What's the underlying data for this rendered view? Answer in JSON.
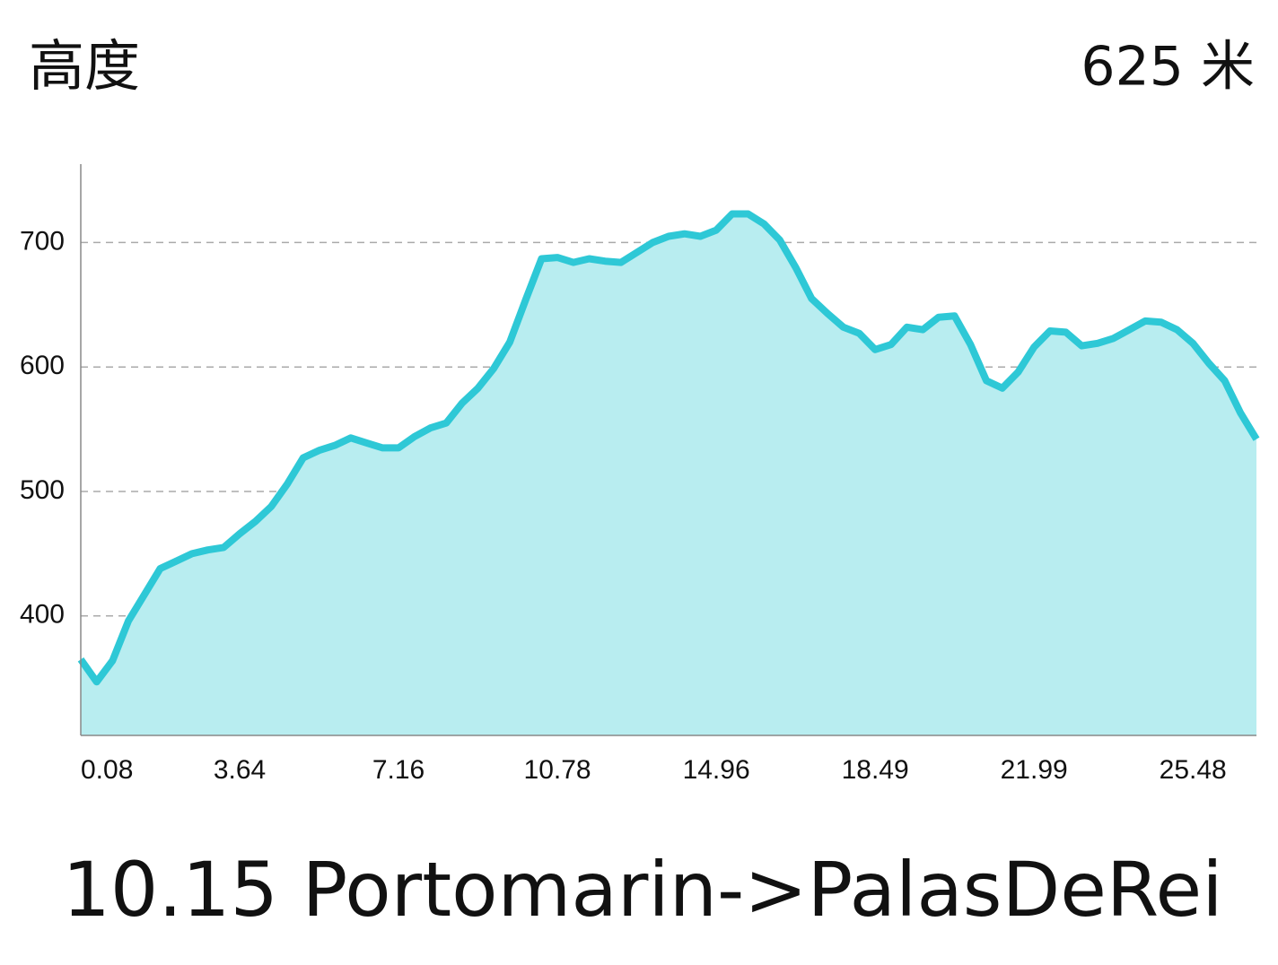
{
  "header": {
    "title": "高度",
    "value": "625 米"
  },
  "chart_data": {
    "type": "area",
    "categories": [
      "0.08",
      null,
      null,
      null,
      null,
      null,
      null,
      null,
      null,
      null,
      "3.64",
      null,
      null,
      null,
      null,
      null,
      null,
      null,
      null,
      null,
      "7.16",
      null,
      null,
      null,
      null,
      null,
      null,
      null,
      null,
      null,
      "10.78",
      null,
      null,
      null,
      null,
      null,
      null,
      null,
      null,
      null,
      "14.96",
      null,
      null,
      null,
      null,
      null,
      null,
      null,
      null,
      null,
      "18.49",
      null,
      null,
      null,
      null,
      null,
      null,
      null,
      null,
      null,
      "21.99",
      null,
      null,
      null,
      null,
      null,
      null,
      null,
      null,
      null,
      "25.48",
      null,
      null,
      null,
      null
    ],
    "values": [
      365,
      347,
      364,
      396,
      417,
      438,
      444,
      450,
      453,
      455,
      466,
      476,
      488,
      506,
      527,
      533,
      537,
      543,
      539,
      535,
      535,
      544,
      551,
      555,
      571,
      583,
      599,
      620,
      654,
      687,
      688,
      684,
      687,
      685,
      684,
      692,
      700,
      705,
      707,
      705,
      710,
      723,
      723,
      715,
      702,
      680,
      655,
      643,
      632,
      627,
      614,
      618,
      632,
      630,
      640,
      641,
      618,
      589,
      583,
      596,
      616,
      629,
      628,
      617,
      619,
      623,
      630,
      637,
      636,
      630,
      619,
      603,
      589,
      563,
      542
    ],
    "ylim": [
      304,
      763
    ],
    "yticks": [
      400,
      500,
      600,
      700
    ],
    "grid": true,
    "color": "#2ec8d6",
    "fill_color": "#b8edf0"
  },
  "footer": {
    "caption": "10.15 Portomarin->PalasDeRei"
  }
}
